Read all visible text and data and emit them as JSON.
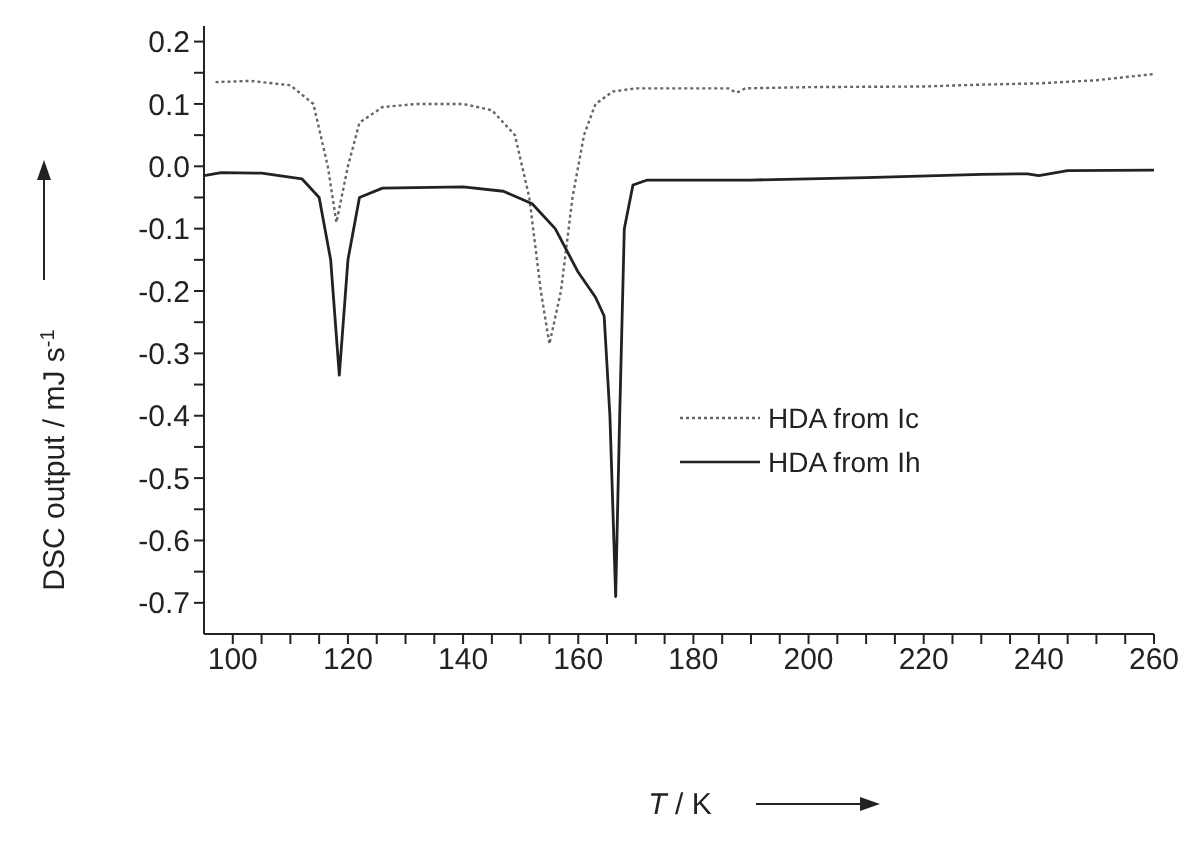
{
  "chart_data": {
    "type": "line",
    "xlabel": "T / K",
    "ylabel": "DSC output / mJ s$^{-1}$",
    "xlim": [
      95,
      260
    ],
    "ylim": [
      -0.75,
      0.225
    ],
    "xticks": [
      100,
      {
        "value": 105,
        "label": null
      },
      {
        "value": 110,
        "label": null
      },
      {
        "value": 115,
        "label": null
      },
      120,
      {
        "value": 125,
        "label": null
      },
      {
        "value": 130,
        "label": null
      },
      {
        "value": 135,
        "label": null
      },
      140,
      {
        "value": 145,
        "label": null
      },
      {
        "value": 150,
        "label": null
      },
      {
        "value": 155,
        "label": null
      },
      160,
      {
        "value": 165,
        "label": null
      },
      {
        "value": 170,
        "label": null
      },
      {
        "value": 175,
        "label": null
      },
      180,
      {
        "value": 185,
        "label": null
      },
      {
        "value": 190,
        "label": null
      },
      {
        "value": 195,
        "label": null
      },
      200,
      {
        "value": 205,
        "label": null
      },
      {
        "value": 210,
        "label": null
      },
      {
        "value": 215,
        "label": null
      },
      220,
      {
        "value": 225,
        "label": null
      },
      {
        "value": 230,
        "label": null
      },
      {
        "value": 235,
        "label": null
      },
      240,
      {
        "value": 245,
        "label": null
      },
      {
        "value": 250,
        "label": null
      },
      {
        "value": 255,
        "label": null
      },
      260
    ],
    "yticks": [
      0.2,
      {
        "value": 0.15,
        "label": null
      },
      0.1,
      {
        "value": 0.05,
        "label": null
      },
      {
        "value": 0,
        "label": "0.0"
      },
      {
        "value": -0.05,
        "label": null
      },
      -0.1,
      {
        "value": -0.15,
        "label": null
      },
      -0.2,
      {
        "value": -0.25,
        "label": null
      },
      -0.3,
      {
        "value": -0.35,
        "label": null
      },
      -0.4,
      {
        "value": -0.45,
        "label": null
      },
      -0.5,
      {
        "value": -0.55,
        "label": null
      },
      -0.6,
      {
        "value": -0.65,
        "label": null
      },
      -0.7
    ],
    "grid": false,
    "legend": "right",
    "marker": "none",
    "series": [
      {
        "name": "HDA from Ic",
        "color": "#666666",
        "line_style": "dotted",
        "x": [
          97,
          103,
          110,
          114,
          116.5,
          118,
          120,
          122,
          126,
          132,
          140,
          145,
          149,
          151.5,
          153.5,
          155,
          157,
          159,
          161,
          163,
          166,
          170,
          186,
          187.5,
          189,
          200,
          220,
          230,
          240,
          250,
          260
        ],
        "values": [
          0.135,
          0.137,
          0.13,
          0.1,
          0,
          -0.09,
          0,
          0.07,
          0.095,
          0.1,
          0.1,
          0.09,
          0.05,
          -0.05,
          -0.2,
          -0.285,
          -0.2,
          -0.05,
          0.05,
          0.1,
          0.12,
          0.125,
          0.125,
          0.118,
          0.125,
          0.127,
          0.128,
          0.131,
          0.133,
          0.138,
          0.148
        ]
      },
      {
        "name": "HDA from Ih",
        "color": "#222222",
        "line_style": "solid",
        "x": [
          95,
          98,
          105,
          112,
          115,
          117,
          118.5,
          120,
          122,
          126,
          140,
          147,
          152,
          156,
          160,
          163,
          164.5,
          165.5,
          166.5,
          167.2,
          168,
          169.5,
          172,
          190,
          210,
          230,
          238,
          240,
          245,
          260
        ],
        "values": [
          -0.015,
          -0.01,
          -0.011,
          -0.02,
          -0.05,
          -0.15,
          -0.335,
          -0.15,
          -0.05,
          -0.035,
          -0.033,
          -0.04,
          -0.06,
          -0.1,
          -0.17,
          -0.21,
          -0.24,
          -0.4,
          -0.69,
          -0.4,
          -0.1,
          -0.03,
          -0.022,
          -0.022,
          -0.018,
          -0.013,
          -0.012,
          -0.015,
          -0.007,
          -0.006
        ]
      }
    ]
  }
}
